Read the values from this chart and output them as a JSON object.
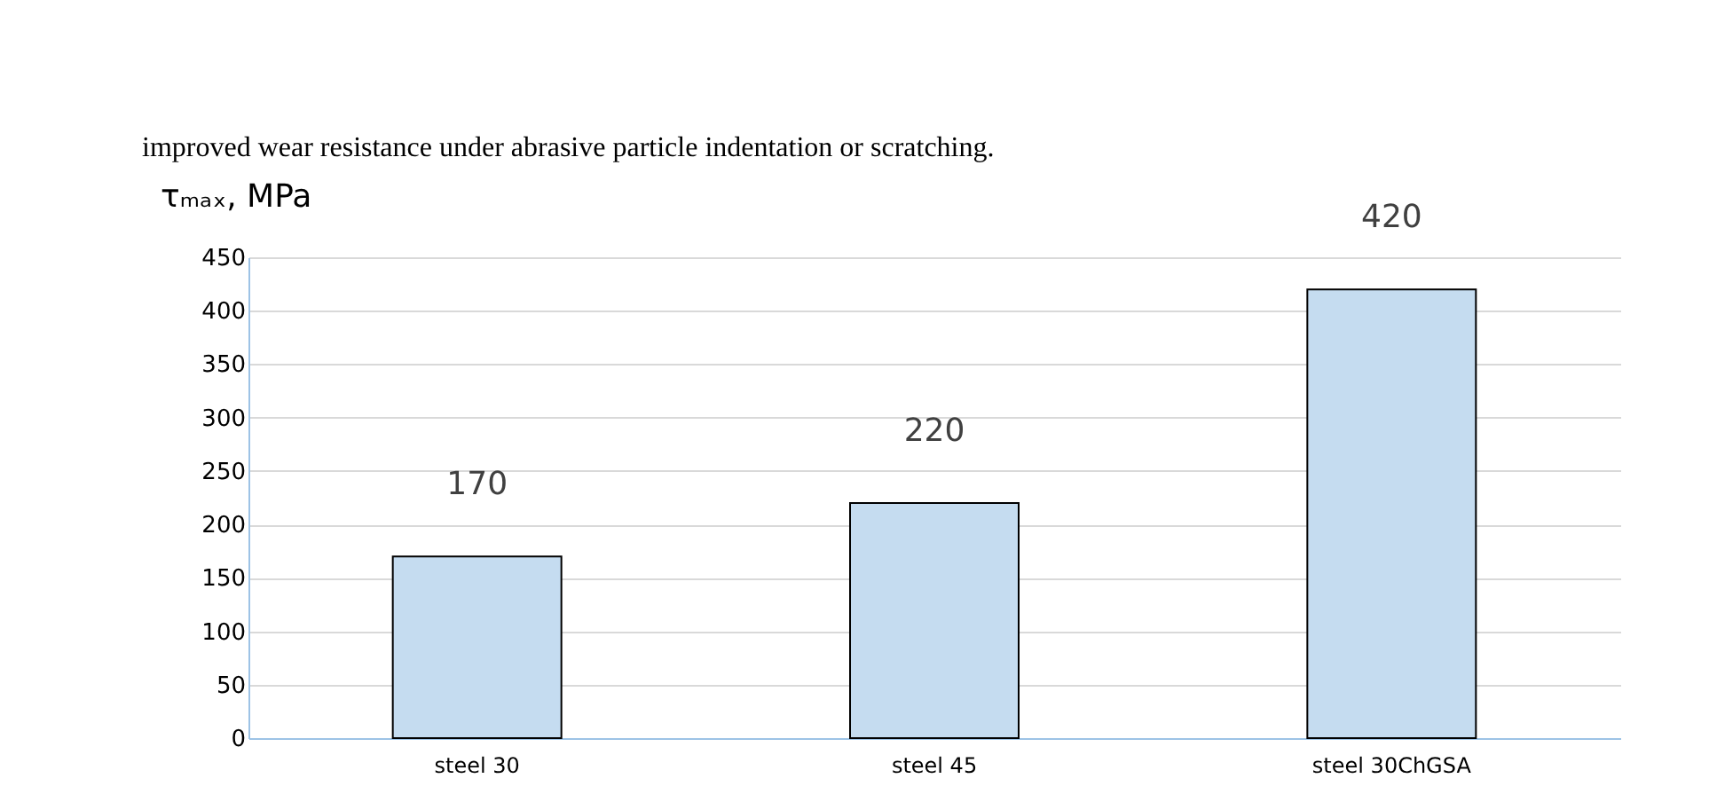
{
  "chart_data": {
    "type": "bar",
    "ylabel": "τₘₐₓ, MPa",
    "categories": [
      "steel 30",
      "steel 45",
      "steel 30ChGSA"
    ],
    "values": [
      170,
      220,
      420
    ],
    "color": "#c5dcf0",
    "ylim": [
      0,
      450
    ],
    "yticks": [
      0,
      50,
      100,
      150,
      200,
      250,
      300,
      350,
      400,
      450
    ],
    "grid": "y",
    "data_labels": true,
    "annotations": [
      "improved wear resistance under abrasive particle indentation or scratching."
    ]
  }
}
